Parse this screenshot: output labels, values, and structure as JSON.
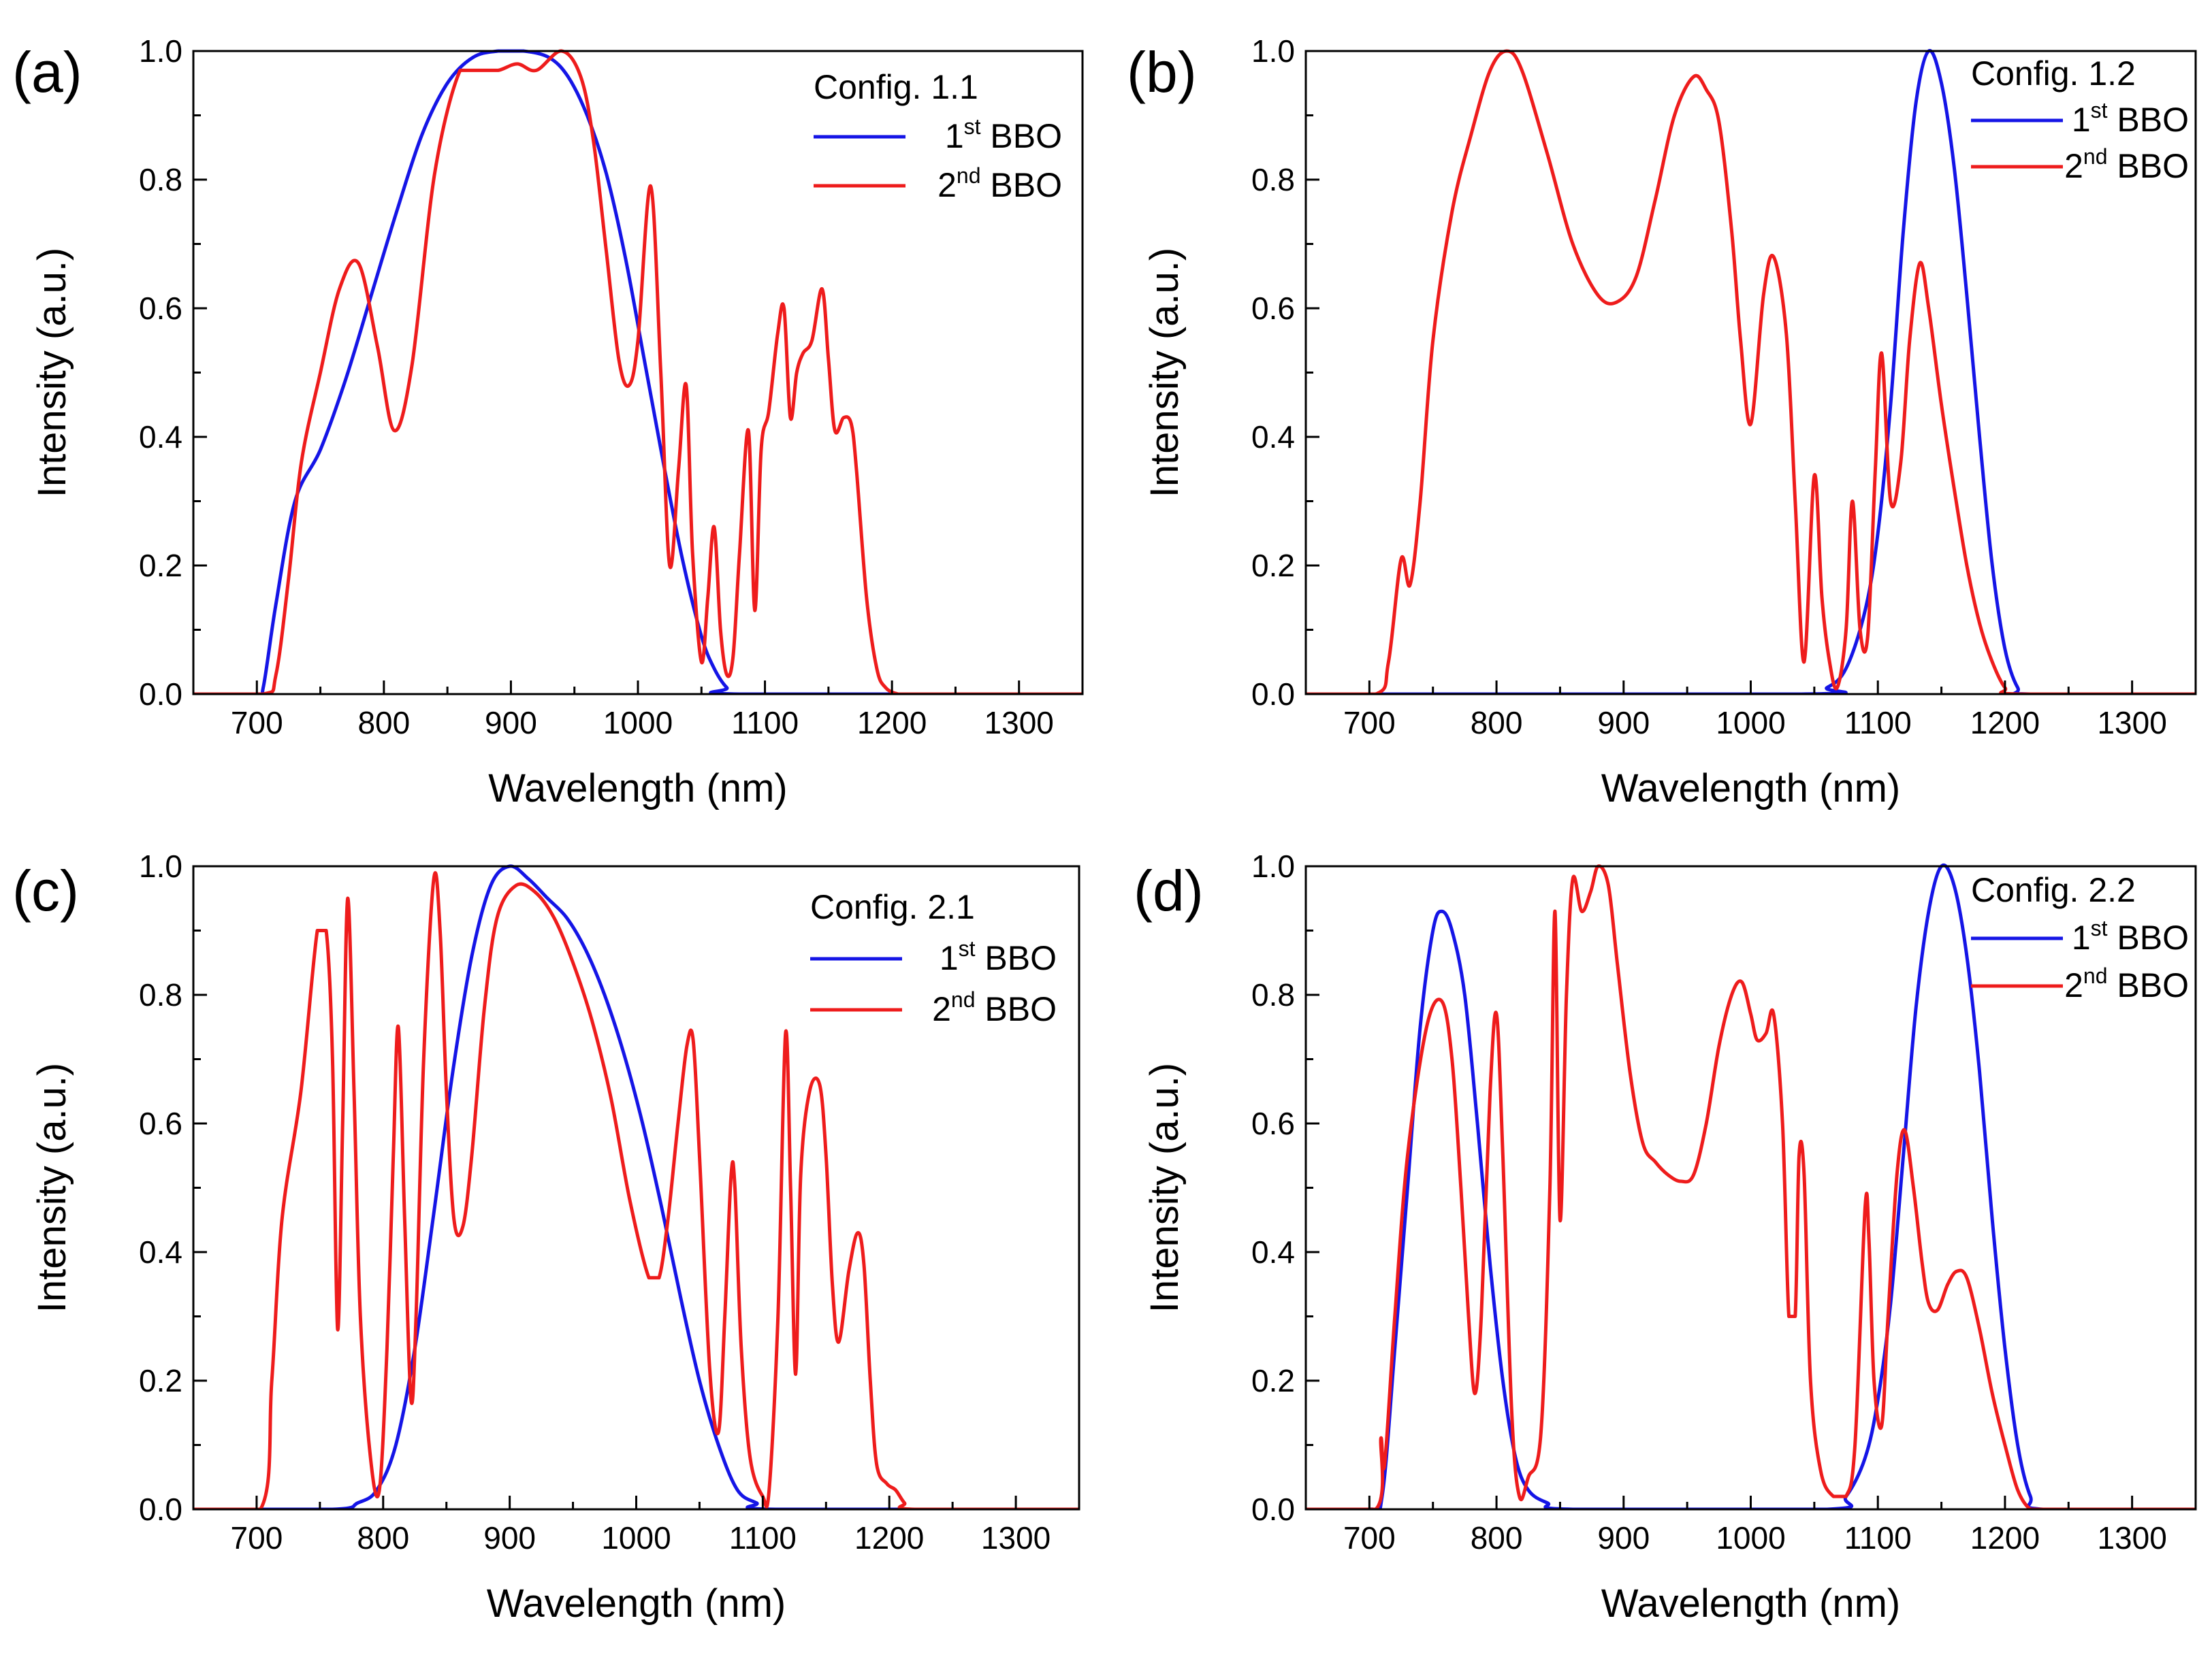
{
  "colors": {
    "first_bbo": "#1515e6",
    "second_bbo": "#ee1c1c",
    "axis": "#000000",
    "background": "#ffffff"
  },
  "chart_data": [
    {
      "type": "line",
      "panel_label": "(a)",
      "xlabel": "Wavelength (nm)",
      "ylabel": "Intensity (a.u.)",
      "xlim": [
        650,
        1350
      ],
      "ylim": [
        0,
        1.0
      ],
      "xticks": [
        "700",
        "800",
        "900",
        "1000",
        "1100",
        "1200",
        "1300"
      ],
      "yticks": [
        "0.0",
        "0.2",
        "0.4",
        "0.6",
        "0.8",
        "1.0"
      ],
      "legend_title": "Config. 1.1",
      "series": [
        {
          "name": "1st BBO",
          "label_base": "1",
          "label_sup": "st",
          "label_rest": " BBO",
          "x": [
            650,
            700,
            705,
            715,
            730,
            750,
            770,
            790,
            810,
            830,
            850,
            870,
            890,
            910,
            930,
            945,
            960,
            975,
            990,
            1005,
            1020,
            1035,
            1050,
            1060,
            1070,
            1080,
            1350
          ],
          "y": [
            0,
            0,
            0.01,
            0.14,
            0.3,
            0.38,
            0.49,
            0.62,
            0.75,
            0.87,
            0.95,
            0.99,
            1.0,
            1.0,
            0.99,
            0.96,
            0.9,
            0.81,
            0.68,
            0.52,
            0.36,
            0.21,
            0.09,
            0.04,
            0.01,
            0,
            0
          ]
        },
        {
          "name": "2nd BBO",
          "label_base": "2",
          "label_sup": "nd",
          "label_rest": " BBO",
          "x": [
            650,
            705,
            715,
            725,
            735,
            750,
            765,
            780,
            795,
            808,
            822,
            840,
            860,
            875,
            890,
            905,
            920,
            940,
            955,
            965,
            975,
            985,
            993,
            1000,
            1010,
            1018,
            1025,
            1032,
            1038,
            1043,
            1050,
            1055,
            1060,
            1065,
            1070,
            1075,
            1080,
            1087,
            1092,
            1097,
            1103,
            1110,
            1115,
            1120,
            1125,
            1130,
            1137,
            1145,
            1150,
            1155,
            1162,
            1168,
            1172,
            1180,
            1188,
            1195,
            1205,
            1215,
            1350
          ],
          "y": [
            0,
            0,
            0.03,
            0.18,
            0.36,
            0.5,
            0.63,
            0.67,
            0.54,
            0.41,
            0.51,
            0.81,
            0.97,
            0.97,
            0.97,
            0.98,
            0.97,
            1.0,
            0.96,
            0.86,
            0.69,
            0.52,
            0.48,
            0.55,
            0.79,
            0.5,
            0.2,
            0.35,
            0.48,
            0.22,
            0.05,
            0.15,
            0.26,
            0.1,
            0.03,
            0.06,
            0.22,
            0.41,
            0.13,
            0.38,
            0.44,
            0.56,
            0.6,
            0.43,
            0.5,
            0.53,
            0.55,
            0.63,
            0.52,
            0.41,
            0.43,
            0.42,
            0.35,
            0.15,
            0.04,
            0.01,
            0,
            0,
            0
          ]
        }
      ]
    },
    {
      "type": "line",
      "panel_label": "(b)",
      "xlabel": "Wavelength (nm)",
      "ylabel": "Intensity (a.u.)",
      "xlim": [
        650,
        1350
      ],
      "ylim": [
        0,
        1.0
      ],
      "xticks": [
        "700",
        "800",
        "900",
        "1000",
        "1100",
        "1200",
        "1300"
      ],
      "yticks": [
        "0.0",
        "0.2",
        "0.4",
        "0.6",
        "0.8",
        "1.0"
      ],
      "legend_title": "Config. 1.2",
      "series": [
        {
          "name": "1st BBO",
          "label_base": "1",
          "label_sup": "st",
          "label_rest": " BBO",
          "x": [
            650,
            1040,
            1060,
            1075,
            1090,
            1100,
            1110,
            1120,
            1130,
            1140,
            1150,
            1160,
            1170,
            1180,
            1190,
            1200,
            1210,
            1220,
            1350
          ],
          "y": [
            0,
            0,
            0.01,
            0.04,
            0.13,
            0.25,
            0.45,
            0.72,
            0.92,
            1.0,
            0.95,
            0.82,
            0.62,
            0.4,
            0.2,
            0.07,
            0.01,
            0,
            0
          ]
        },
        {
          "name": "2nd BBO",
          "label_base": "2",
          "label_sup": "nd",
          "label_rest": " BBO",
          "x": [
            650,
            705,
            715,
            725,
            732,
            740,
            750,
            765,
            780,
            795,
            808,
            820,
            840,
            860,
            880,
            895,
            910,
            925,
            940,
            955,
            965,
            975,
            985,
            992,
            1000,
            1010,
            1018,
            1028,
            1035,
            1042,
            1050,
            1056,
            1062,
            1068,
            1075,
            1080,
            1086,
            1092,
            1098,
            1103,
            1110,
            1118,
            1125,
            1133,
            1140,
            1150,
            1160,
            1170,
            1180,
            1190,
            1200,
            1210,
            1350
          ],
          "y": [
            0,
            0,
            0.05,
            0.21,
            0.17,
            0.3,
            0.55,
            0.75,
            0.87,
            0.97,
            1.0,
            0.97,
            0.84,
            0.7,
            0.62,
            0.61,
            0.65,
            0.77,
            0.9,
            0.96,
            0.94,
            0.89,
            0.72,
            0.55,
            0.42,
            0.62,
            0.68,
            0.56,
            0.3,
            0.05,
            0.34,
            0.15,
            0.05,
            0.01,
            0.1,
            0.3,
            0.1,
            0.09,
            0.35,
            0.53,
            0.3,
            0.36,
            0.55,
            0.67,
            0.6,
            0.45,
            0.32,
            0.2,
            0.11,
            0.05,
            0.01,
            0,
            0
          ]
        }
      ]
    },
    {
      "type": "line",
      "panel_label": "(c)",
      "xlabel": "Wavelength (nm)",
      "ylabel": "Intensity (a.u.)",
      "xlim": [
        650,
        1350
      ],
      "ylim": [
        0,
        1.0
      ],
      "xticks": [
        "700",
        "800",
        "900",
        "1000",
        "1100",
        "1200",
        "1300"
      ],
      "yticks": [
        "0.0",
        "0.2",
        "0.4",
        "0.6",
        "0.8",
        "1.0"
      ],
      "legend_title": "Config. 2.1",
      "series": [
        {
          "name": "1st BBO",
          "label_base": "1",
          "label_sup": "st",
          "label_rest": " BBO",
          "x": [
            650,
            760,
            780,
            795,
            810,
            825,
            840,
            855,
            870,
            885,
            900,
            915,
            930,
            945,
            960,
            975,
            990,
            1005,
            1020,
            1035,
            1050,
            1065,
            1080,
            1095,
            1110,
            1350
          ],
          "y": [
            0,
            0,
            0.01,
            0.03,
            0.1,
            0.25,
            0.46,
            0.68,
            0.86,
            0.97,
            1.0,
            0.98,
            0.95,
            0.92,
            0.87,
            0.8,
            0.71,
            0.6,
            0.47,
            0.33,
            0.2,
            0.1,
            0.03,
            0.01,
            0,
            0
          ]
        },
        {
          "name": "2nd BBO",
          "label_base": "2",
          "label_sup": "nd",
          "label_rest": " BBO",
          "x": [
            650,
            703,
            712,
            720,
            735,
            748,
            755,
            760,
            764,
            768,
            772,
            777,
            782,
            790,
            797,
            803,
            808,
            812,
            817,
            822,
            826,
            832,
            840,
            845,
            850,
            856,
            863,
            870,
            880,
            890,
            905,
            920,
            935,
            950,
            965,
            980,
            995,
            1010,
            1018,
            1025,
            1033,
            1040,
            1045,
            1050,
            1058,
            1065,
            1070,
            1075,
            1078,
            1083,
            1090,
            1100,
            1105,
            1112,
            1118,
            1122,
            1126,
            1130,
            1137,
            1145,
            1150,
            1155,
            1160,
            1168,
            1175,
            1180,
            1185,
            1190,
            1198,
            1205,
            1212,
            1220,
            1350
          ],
          "y": [
            0,
            0,
            0.2,
            0.45,
            0.65,
            0.9,
            0.9,
            0.7,
            0.28,
            0.6,
            0.95,
            0.65,
            0.3,
            0.08,
            0.03,
            0.25,
            0.55,
            0.75,
            0.45,
            0.17,
            0.3,
            0.7,
            0.98,
            0.9,
            0.65,
            0.45,
            0.44,
            0.55,
            0.78,
            0.92,
            0.97,
            0.96,
            0.92,
            0.85,
            0.76,
            0.64,
            0.48,
            0.36,
            0.36,
            0.45,
            0.6,
            0.72,
            0.73,
            0.55,
            0.22,
            0.12,
            0.3,
            0.52,
            0.5,
            0.25,
            0.08,
            0.02,
            0.03,
            0.3,
            0.74,
            0.5,
            0.21,
            0.52,
            0.65,
            0.66,
            0.55,
            0.35,
            0.26,
            0.37,
            0.43,
            0.38,
            0.2,
            0.07,
            0.04,
            0.03,
            0.01,
            0,
            0
          ]
        }
      ]
    },
    {
      "type": "line",
      "panel_label": "(d)",
      "xlabel": "Wavelength (nm)",
      "ylabel": "Intensity (a.u.)",
      "xlim": [
        650,
        1350
      ],
      "ylim": [
        0,
        1.0
      ],
      "xticks": [
        "700",
        "800",
        "900",
        "1000",
        "1100",
        "1200",
        "1300"
      ],
      "yticks": [
        "0.0",
        "0.2",
        "0.4",
        "0.6",
        "0.8",
        "1.0"
      ],
      "legend_title": "Config. 2.2",
      "series": [
        {
          "name": "1st BBO",
          "label_base": "1",
          "label_sup": "st",
          "label_rest": " BBO",
          "x": [
            650,
            700,
            710,
            720,
            730,
            740,
            750,
            757,
            765,
            775,
            785,
            795,
            805,
            815,
            825,
            840,
            860,
            1060,
            1075,
            1090,
            1100,
            1110,
            1120,
            1130,
            1140,
            1150,
            1160,
            1170,
            1180,
            1190,
            1200,
            1210,
            1220,
            1230,
            1350
          ],
          "y": [
            0,
            0,
            0.02,
            0.25,
            0.5,
            0.75,
            0.9,
            0.93,
            0.9,
            0.8,
            0.6,
            0.38,
            0.2,
            0.08,
            0.03,
            0.01,
            0,
            0,
            0.02,
            0.08,
            0.17,
            0.32,
            0.55,
            0.78,
            0.93,
            1.0,
            0.97,
            0.86,
            0.68,
            0.45,
            0.25,
            0.1,
            0.02,
            0,
            0
          ]
        },
        {
          "name": "2nd BBO",
          "label_base": "2",
          "label_sup": "nd",
          "label_rest": " BBO",
          "x": [
            650,
            705,
            709,
            712,
            720,
            730,
            745,
            757,
            765,
            772,
            778,
            783,
            788,
            795,
            800,
            805,
            812,
            818,
            825,
            835,
            842,
            846,
            850,
            855,
            860,
            867,
            874,
            880,
            888,
            895,
            905,
            915,
            925,
            935,
            945,
            955,
            965,
            975,
            985,
            993,
            1000,
            1005,
            1012,
            1018,
            1025,
            1030,
            1035,
            1038,
            1042,
            1047,
            1055,
            1065,
            1075,
            1082,
            1090,
            1093,
            1097,
            1103,
            1108,
            1115,
            1121,
            1128,
            1135,
            1140,
            1147,
            1155,
            1162,
            1170,
            1180,
            1190,
            1200,
            1210,
            1220,
            1230,
            1350
          ],
          "y": [
            0,
            0,
            0.11,
            0.07,
            0.3,
            0.55,
            0.75,
            0.79,
            0.7,
            0.5,
            0.3,
            0.18,
            0.3,
            0.65,
            0.77,
            0.55,
            0.15,
            0.02,
            0.05,
            0.12,
            0.5,
            0.93,
            0.45,
            0.8,
            0.98,
            0.93,
            0.96,
            1.0,
            0.97,
            0.85,
            0.68,
            0.57,
            0.54,
            0.52,
            0.51,
            0.52,
            0.6,
            0.72,
            0.8,
            0.82,
            0.77,
            0.73,
            0.74,
            0.77,
            0.6,
            0.3,
            0.3,
            0.55,
            0.52,
            0.2,
            0.06,
            0.02,
            0.02,
            0.1,
            0.47,
            0.42,
            0.2,
            0.13,
            0.3,
            0.52,
            0.59,
            0.5,
            0.38,
            0.32,
            0.31,
            0.35,
            0.37,
            0.36,
            0.28,
            0.18,
            0.1,
            0.03,
            0,
            0,
            0
          ]
        }
      ]
    }
  ]
}
